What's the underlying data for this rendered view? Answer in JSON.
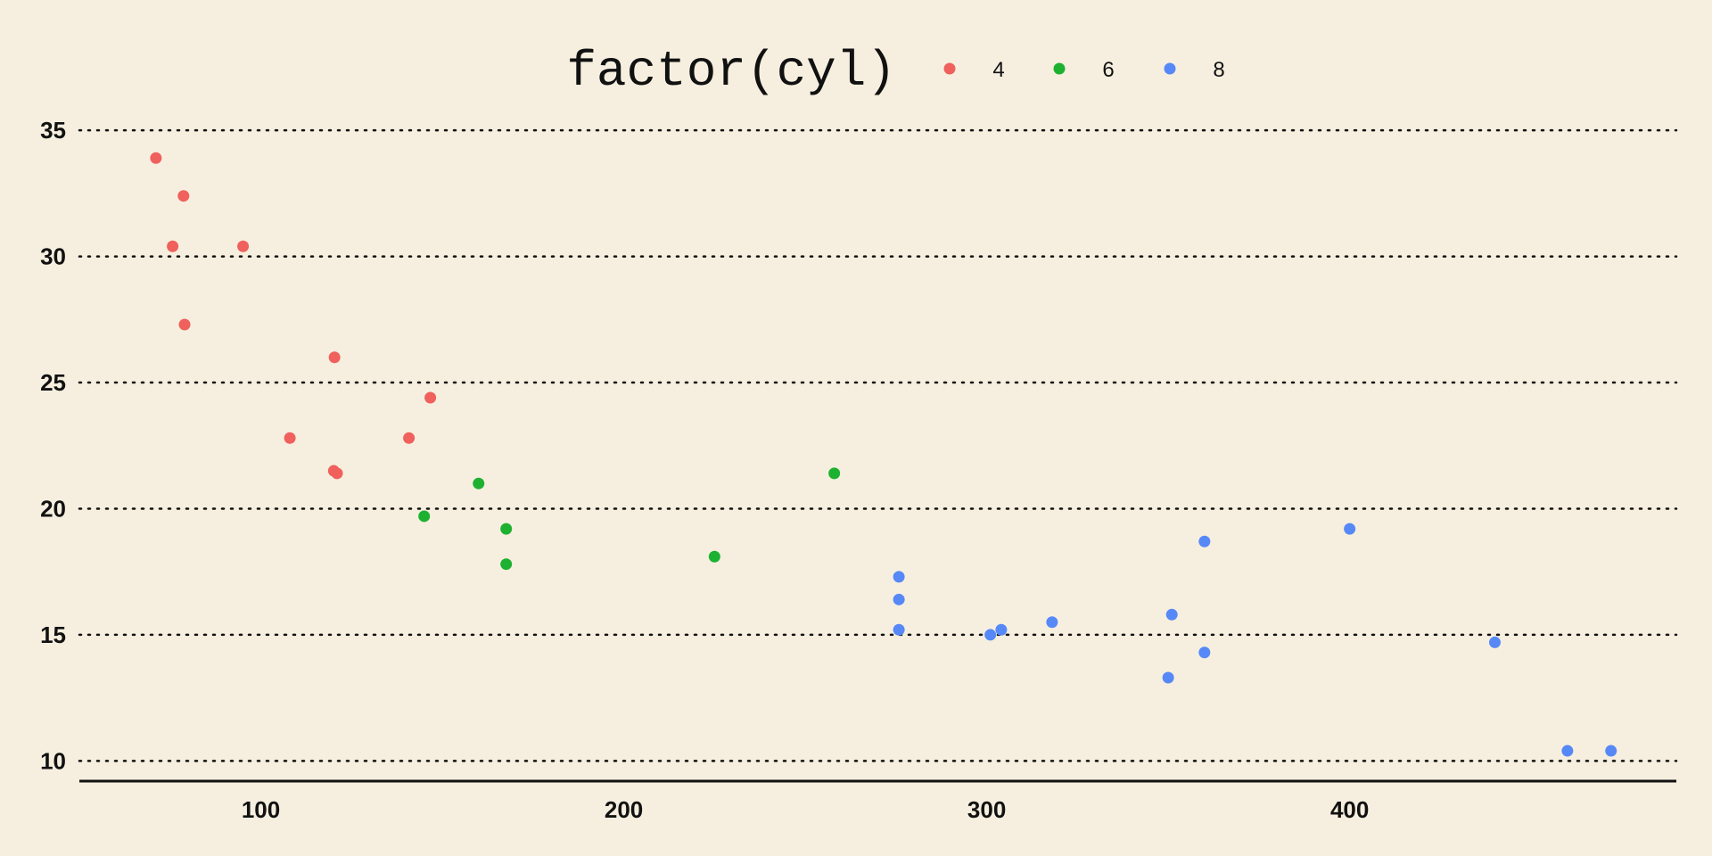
{
  "chart_data": {
    "type": "scatter",
    "title": "",
    "xlabel": "",
    "ylabel": "",
    "xlim": [
      50,
      490
    ],
    "ylim": [
      9.2,
      35.5
    ],
    "x_ticks": [
      100,
      200,
      300,
      400
    ],
    "y_ticks": [
      10,
      15,
      20,
      25,
      30,
      35
    ],
    "grid": "horizontal dotted major gridlines",
    "legend": {
      "title": "factor(cyl)",
      "position": "top"
    },
    "series": [
      {
        "name": "4",
        "color": "#f0605c",
        "points": [
          [
            71.1,
            33.9
          ],
          [
            78.7,
            32.4
          ],
          [
            75.7,
            30.4
          ],
          [
            95.1,
            30.4
          ],
          [
            79.0,
            27.3
          ],
          [
            120.3,
            26.0
          ],
          [
            146.7,
            24.4
          ],
          [
            108.0,
            22.8
          ],
          [
            140.8,
            22.8
          ],
          [
            120.1,
            21.5
          ],
          [
            121.0,
            21.4
          ]
        ]
      },
      {
        "name": "6",
        "color": "#1db131",
        "points": [
          [
            258.0,
            21.4
          ],
          [
            160.0,
            21.0
          ],
          [
            145.0,
            19.7
          ],
          [
            167.6,
            19.2
          ],
          [
            225.0,
            18.1
          ],
          [
            167.6,
            17.8
          ]
        ]
      },
      {
        "name": "8",
        "color": "#5689f7",
        "points": [
          [
            400.0,
            19.2
          ],
          [
            360.0,
            18.7
          ],
          [
            275.8,
            17.3
          ],
          [
            275.8,
            16.4
          ],
          [
            351.0,
            15.8
          ],
          [
            318.0,
            15.5
          ],
          [
            304.0,
            15.2
          ],
          [
            275.8,
            15.2
          ],
          [
            301.0,
            15.0
          ],
          [
            440.0,
            14.7
          ],
          [
            360.0,
            14.3
          ],
          [
            350.0,
            13.3
          ],
          [
            460.0,
            10.4
          ],
          [
            472.0,
            10.4
          ]
        ]
      }
    ]
  }
}
